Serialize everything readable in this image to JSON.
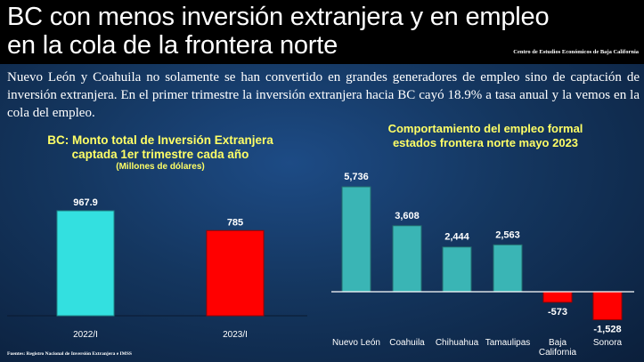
{
  "title_line1": "BC con menos inversión extranjera y en empleo",
  "title_line2": "en la cola de la frontera norte",
  "source_tag": "Centro de Estudios Económicos de Baja California",
  "intro": "Nuevo León y Coahuila no solamente se han convertido en grandes generadores de empleo sino de captación de inversión extranjera. En el primer trimestre la inversión extranjera hacia BC cayó 18.9% a tasa anual y la vemos en la cola del empleo.",
  "footer": "Fuentes: Registro Nacional de Inversión Extranjera e IMSS",
  "chart_data": [
    {
      "type": "bar",
      "title_line1": "BC: Monto total de Inversión Extranjera",
      "title_line2": "captada 1er trimestre cada año",
      "subtitle": "(Millones de dólares)",
      "categories": [
        "2022/I",
        "2023/I"
      ],
      "values": [
        967.9,
        785
      ],
      "labels": [
        "967.9",
        "785"
      ],
      "colors": [
        "#33e0e0",
        "#ff0000"
      ]
    },
    {
      "type": "bar",
      "title_line1": "Comportamiento del empleo formal",
      "title_line2": "estados frontera norte mayo 2023",
      "categories": [
        "Nuevo León",
        "Coahuila",
        "Chihuahua",
        "Tamaulipas",
        "Baja California",
        "Sonora"
      ],
      "category_lines": [
        [
          "Nuevo León"
        ],
        [
          "Coahuila"
        ],
        [
          "Chihuahua"
        ],
        [
          "Tamaulipas"
        ],
        [
          "Baja",
          "California"
        ],
        [
          "Sonora"
        ]
      ],
      "values": [
        5736,
        3608,
        2444,
        2563,
        -573,
        -1528
      ],
      "labels": [
        "5,736",
        "3,608",
        "2,444",
        "2,563",
        "-573",
        "-1,528"
      ],
      "positive_color": "#3ab5b5",
      "negative_color": "#ff0000"
    }
  ]
}
